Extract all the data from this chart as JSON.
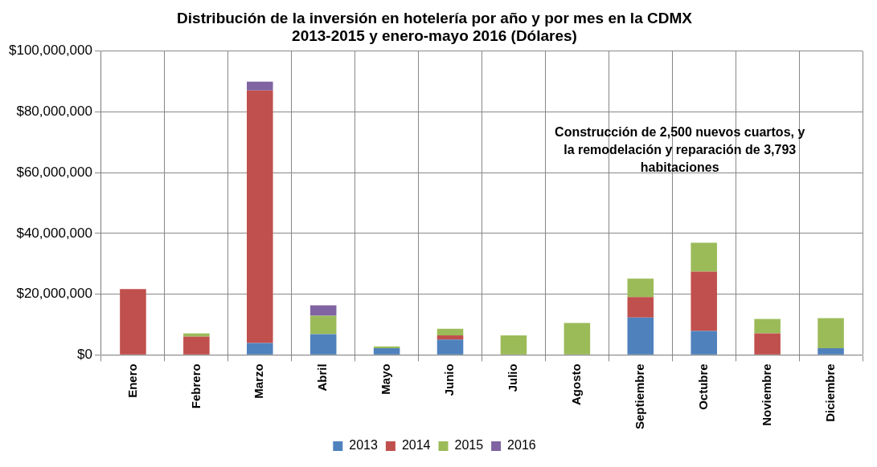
{
  "chart_data": {
    "type": "bar",
    "title": "Distribución de la inversión en hotelería por año y por mes en la CDMX\n2013-2015 y enero-mayo 2016 (Dólares)",
    "categories": [
      "Enero",
      "Febrero",
      "Marzo",
      "Abril",
      "Mayo",
      "Junio",
      "Julio",
      "Agosto",
      "Septiembre",
      "Octubre",
      "Noviembre",
      "Diciembre"
    ],
    "stacked": true,
    "series": [
      {
        "name": "2013",
        "color": "#4f81bd",
        "values": [
          0,
          0,
          3900000,
          6800000,
          2200000,
          5000000,
          0,
          0,
          12300000,
          7900000,
          0,
          2200000
        ]
      },
      {
        "name": "2014",
        "color": "#c0504d",
        "values": [
          21700000,
          6000000,
          83100000,
          0,
          0,
          1400000,
          0,
          0,
          6700000,
          19500000,
          7100000,
          0
        ]
      },
      {
        "name": "2015",
        "color": "#9bbb59",
        "values": [
          0,
          1100000,
          0,
          6100000,
          600000,
          2200000,
          6400000,
          10500000,
          6100000,
          9500000,
          4700000,
          9900000
        ]
      },
      {
        "name": "2016",
        "color": "#8064a2",
        "values": [
          0,
          0,
          2900000,
          3400000,
          0,
          0,
          0,
          0,
          0,
          0,
          0,
          0
        ]
      }
    ],
    "ylim": [
      0,
      100000000
    ],
    "yticks": [
      {
        "value": 0,
        "label": "$0"
      },
      {
        "value": 20000000,
        "label": "$20,000,000"
      },
      {
        "value": 40000000,
        "label": "$40,000,000"
      },
      {
        "value": 60000000,
        "label": "$60,000,000"
      },
      {
        "value": 80000000,
        "label": "$80,000,000"
      },
      {
        "value": 100000000,
        "label": "$100,000,000"
      }
    ],
    "grid": true,
    "legend": "bottom",
    "annotations": [
      "Construcción de 2,500 nuevos cuartos, y\nla remodelación y reparación de 3,793\nhabitaciones"
    ]
  }
}
